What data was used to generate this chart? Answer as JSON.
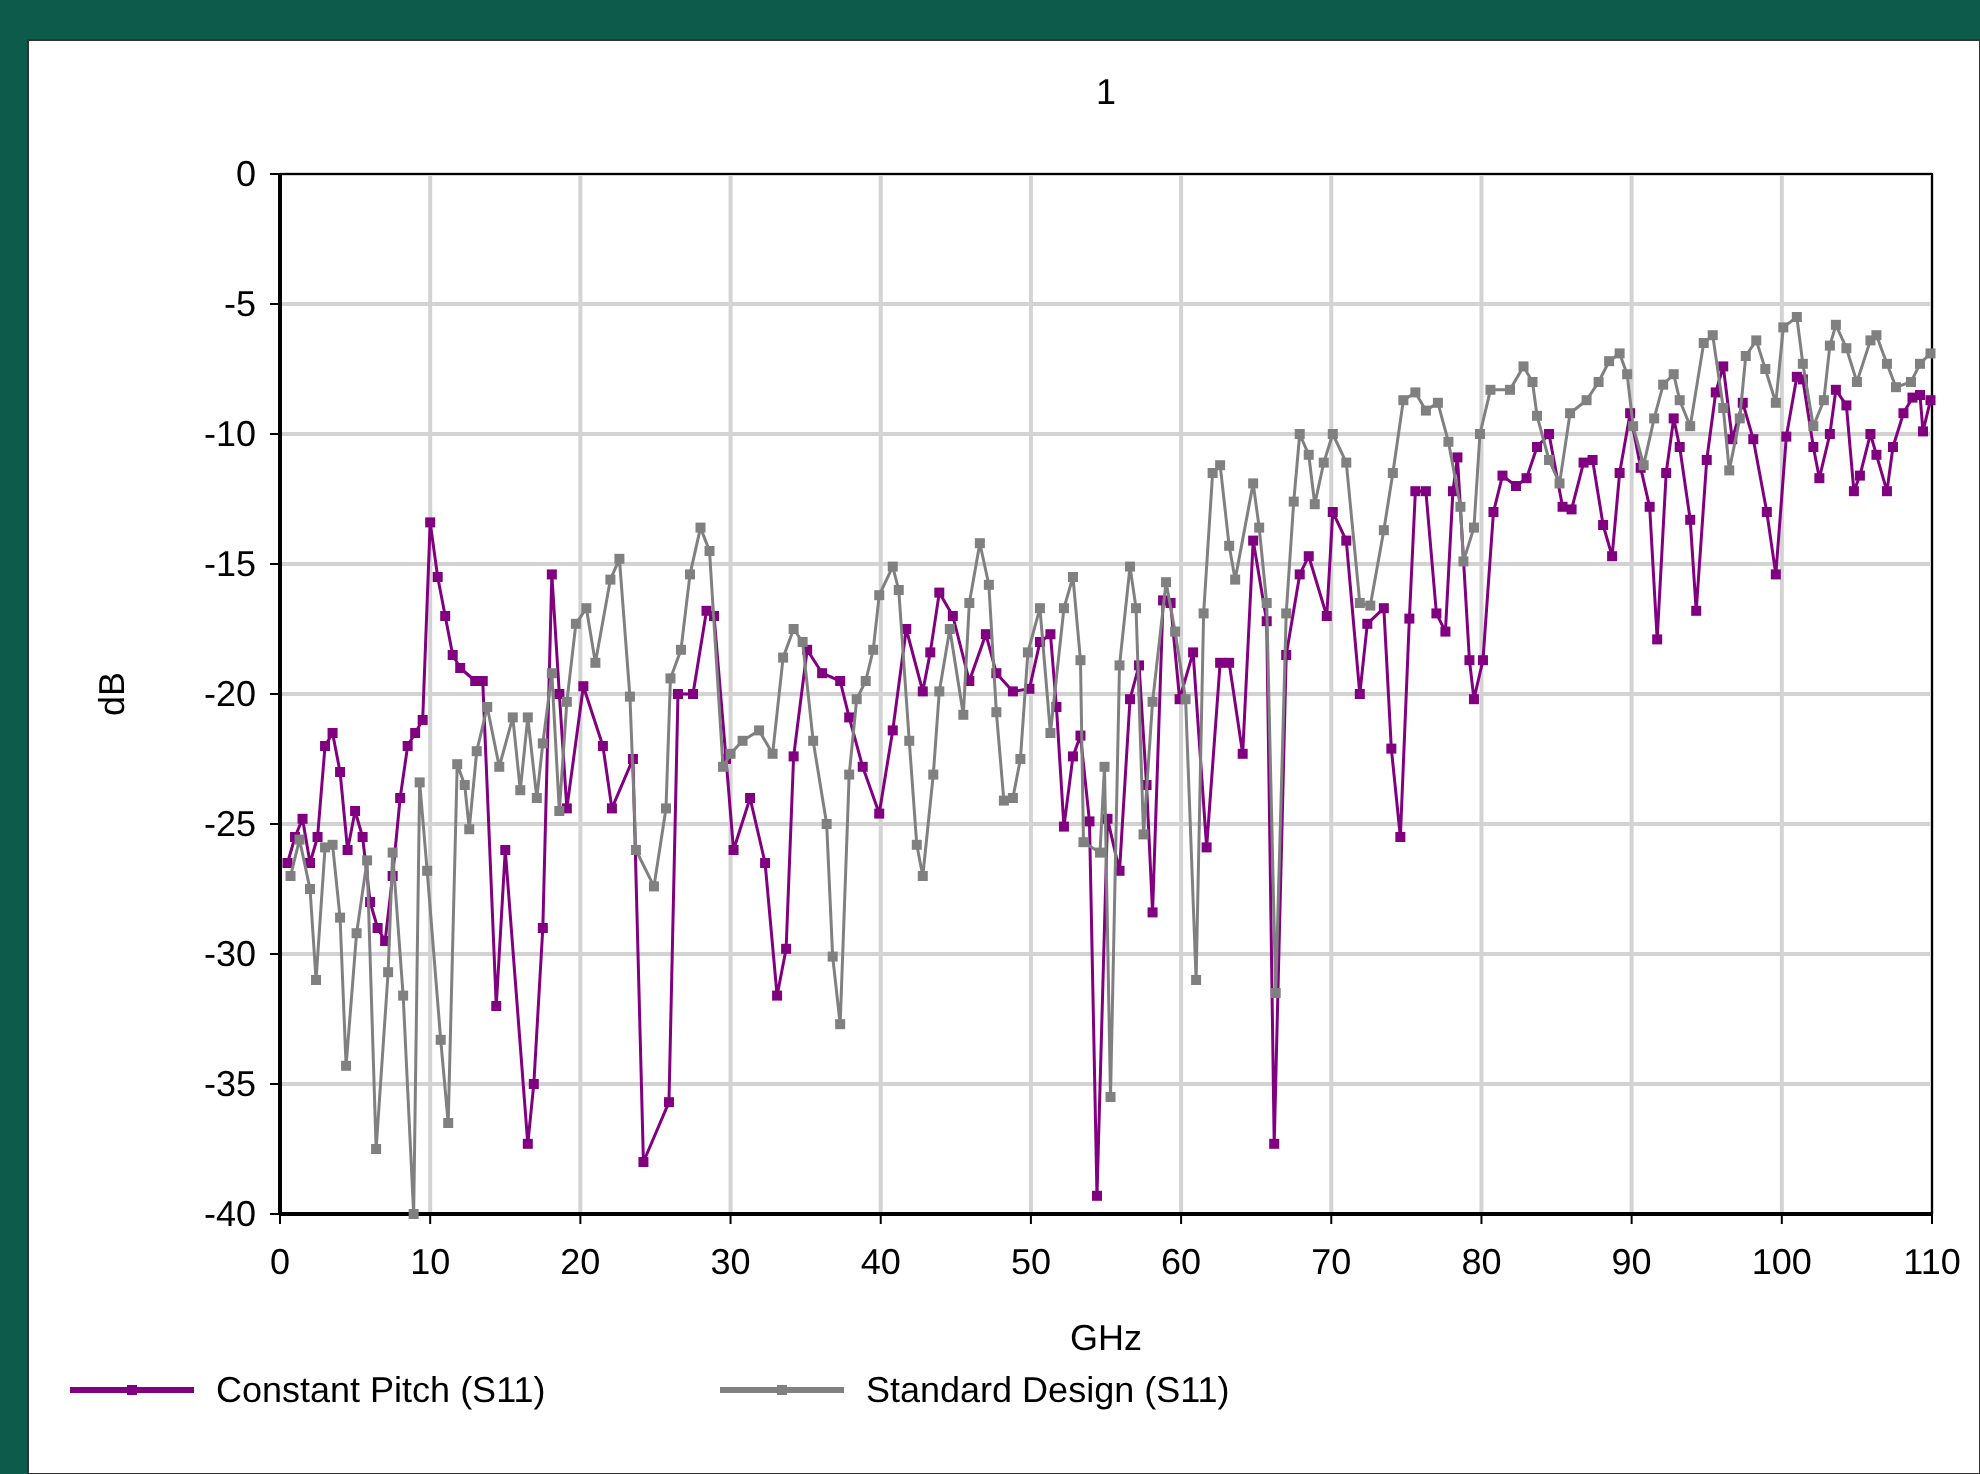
{
  "chart_data": {
    "type": "line",
    "title": "1",
    "xlabel": "GHz",
    "ylabel": "dB",
    "xlim": [
      0,
      110
    ],
    "xticks": [
      0,
      10,
      20,
      30,
      40,
      50,
      60,
      70,
      80,
      90,
      100,
      110
    ],
    "ylim": [
      -40,
      0
    ],
    "yticks": [
      -40,
      -35,
      -30,
      -25,
      -20,
      -15,
      -10,
      -5,
      0
    ],
    "grid": true,
    "legend": "bottom",
    "marker": "square",
    "line_style": "solid",
    "series": [
      {
        "name": "Constant Pitch (S11)",
        "color": "#800080",
        "x": [
          0.5,
          1,
          1.5,
          2,
          2.5,
          3,
          3.5,
          4,
          4.5,
          5,
          5.5,
          6,
          6.5,
          7,
          7.5,
          8,
          8.5,
          9,
          9.5,
          10,
          10.5,
          11,
          11.5,
          12,
          13,
          13.5,
          14.4,
          15,
          16.5,
          16.9,
          17.5,
          18.1,
          18.6,
          19.1,
          20.2,
          21.5,
          22.1,
          23.5,
          24.2,
          25.9,
          26.5,
          27.5,
          28.4,
          28.9,
          29.7,
          30.2,
          31.3,
          32.3,
          33.1,
          33.7,
          34.2,
          35.1,
          36.1,
          37.3,
          37.9,
          38.8,
          39.9,
          40.8,
          41.7,
          42.8,
          43.3,
          43.9,
          44.8,
          45.9,
          47,
          47.7,
          48.8,
          49.9,
          50.6,
          51.3,
          51.7,
          52.2,
          52.8,
          53.3,
          53.9,
          54.4,
          55.1,
          55.9,
          56.6,
          57.2,
          57.7,
          58.1,
          58.8,
          59.3,
          59.9,
          60.8,
          61.7,
          62.6,
          63.2,
          64.1,
          64.8,
          65.7,
          66.2,
          67,
          67.9,
          68.5,
          69.7,
          70.1,
          71,
          71.9,
          72.4,
          73.5,
          74,
          74.6,
          75.2,
          75.6,
          76.3,
          77,
          77.6,
          78.1,
          78.4,
          79.2,
          79.5,
          80.1,
          80.8,
          81.4,
          82.3,
          83,
          83.7,
          84.5,
          85.4,
          86,
          86.8,
          87.4,
          88.1,
          88.7,
          89.2,
          89.9,
          90.6,
          91.2,
          91.7,
          92.3,
          92.8,
          93.2,
          93.9,
          94.3,
          95,
          95.6,
          96.1,
          96.7,
          97.4,
          98.1,
          99,
          99.6,
          100.3,
          101,
          101.4,
          102.1,
          102.5,
          103.2,
          103.6,
          104.3,
          104.8,
          105.2,
          105.9,
          106.3,
          107,
          107.4,
          108.1,
          108.7,
          109.2,
          109.4,
          109.9
        ],
        "values": [
          -26.5,
          -25.5,
          -24.8,
          -26.5,
          -25.5,
          -22,
          -21.5,
          -23,
          -26,
          -24.5,
          -25.5,
          -28,
          -29,
          -29.5,
          -27,
          -24,
          -22,
          -21.5,
          -21,
          -13.4,
          -15.5,
          -17,
          -18.5,
          -19,
          -19.5,
          -19.5,
          -32,
          -26,
          -37.3,
          -35,
          -29,
          -15.4,
          -20,
          -24.4,
          -19.7,
          -22,
          -24.4,
          -22.5,
          -38,
          -35.7,
          -20,
          -20,
          -16.8,
          -17,
          -22.5,
          -26,
          -24,
          -26.5,
          -31.6,
          -29.8,
          -22.4,
          -18.3,
          -19.2,
          -19.5,
          -20.9,
          -22.8,
          -24.6,
          -21.4,
          -17.5,
          -19.9,
          -18.4,
          -16.1,
          -17,
          -19.5,
          -17.7,
          -19.2,
          -19.9,
          -19.8,
          -18,
          -17.7,
          -20.5,
          -25.1,
          -22.4,
          -21.6,
          -24.9,
          -39.3,
          -24.8,
          -26.8,
          -20.2,
          -18.9,
          -23.5,
          -28.4,
          -16.4,
          -16.5,
          -20.2,
          -18.4,
          -25.9,
          -18.8,
          -18.8,
          -22.3,
          -14.1,
          -17.2,
          -37.3,
          -18.5,
          -15.4,
          -14.7,
          -17,
          -13,
          -14.1,
          -20,
          -17.3,
          -16.7,
          -22.1,
          -25.5,
          -17.1,
          -12.2,
          -12.2,
          -16.9,
          -17.6,
          -12.2,
          -10.9,
          -18.7,
          -20.2,
          -18.7,
          -13,
          -11.6,
          -12,
          -11.7,
          -10.5,
          -10,
          -12.8,
          -12.9,
          -11.1,
          -11,
          -13.5,
          -14.7,
          -11.5,
          -9.2,
          -11.3,
          -12.8,
          -17.9,
          -11.5,
          -9.4,
          -10.5,
          -13.3,
          -16.8,
          -11,
          -8.4,
          -7.4,
          -10.2,
          -8.8,
          -10.2,
          -13,
          -15.4,
          -10.1,
          -7.8,
          -7.9,
          -10.5,
          -11.7,
          -10,
          -8.3,
          -8.9,
          -12.2,
          -11.6,
          -10,
          -10.8,
          -12.2,
          -10.5,
          -9.2,
          -8.6,
          -8.5,
          -9.9,
          -8.7
        ]
      },
      {
        "name": "Standard Design (S11)",
        "color": "#808080",
        "x": [
          0.7,
          1.3,
          2,
          2.4,
          3,
          3.5,
          4,
          4.4,
          5.1,
          5.8,
          6.4,
          7.2,
          7.5,
          8.2,
          8.9,
          9.3,
          9.8,
          10.7,
          11.2,
          11.8,
          12.3,
          12.6,
          13.1,
          13.8,
          14.6,
          15.5,
          16,
          16.5,
          17.1,
          17.5,
          18.1,
          18.6,
          19.1,
          19.7,
          20.4,
          21,
          22,
          22.6,
          23.3,
          23.7,
          24.9,
          25.7,
          26,
          26.7,
          27.3,
          28,
          28.6,
          29.5,
          30,
          30.8,
          31.9,
          32.8,
          33.5,
          34.2,
          34.8,
          35.5,
          36.4,
          36.8,
          37.3,
          37.9,
          38.4,
          39,
          39.5,
          39.9,
          40.8,
          41.2,
          41.9,
          42.4,
          42.8,
          43.5,
          43.9,
          44.6,
          45.5,
          45.9,
          46.6,
          47.2,
          47.7,
          48.2,
          48.8,
          49.3,
          49.8,
          50.6,
          51.3,
          52.2,
          52.8,
          53.3,
          53.5,
          54.6,
          54.9,
          55.3,
          55.9,
          56.6,
          57,
          57.5,
          58.1,
          59,
          59.6,
          60.3,
          61,
          61.5,
          62.1,
          62.6,
          63.2,
          63.6,
          64.8,
          65.2,
          65.7,
          66.3,
          67,
          67.5,
          67.9,
          68.5,
          68.9,
          69.5,
          70.1,
          71,
          71.9,
          72.6,
          73.5,
          74.1,
          74.8,
          75.6,
          76.3,
          77.1,
          77.8,
          78.6,
          78.8,
          79.5,
          79.9,
          80.6,
          81.9,
          82.8,
          83.4,
          83.7,
          84.5,
          85.2,
          85.9,
          87,
          87.8,
          88.5,
          89.2,
          89.7,
          90.1,
          90.8,
          91.5,
          92.1,
          92.8,
          93.2,
          93.9,
          94.8,
          95.4,
          96.1,
          96.5,
          97.2,
          97.6,
          98.3,
          98.9,
          99.6,
          100.1,
          101,
          101.4,
          102.1,
          102.8,
          103.2,
          103.6,
          104.3,
          105,
          105.9,
          106.3,
          107,
          107.6,
          108.6,
          109.2,
          109.9
        ],
        "values": [
          -27,
          -25.6,
          -27.5,
          -31,
          -25.9,
          -25.8,
          -28.6,
          -34.3,
          -29.2,
          -26.4,
          -37.5,
          -30.7,
          -26.1,
          -31.6,
          -40,
          -23.4,
          -26.8,
          -33.3,
          -36.5,
          -22.7,
          -23.5,
          -25.2,
          -22.2,
          -20.5,
          -22.8,
          -20.9,
          -23.7,
          -20.9,
          -24,
          -21.9,
          -19.2,
          -24.5,
          -20.3,
          -17.3,
          -16.7,
          -18.8,
          -15.6,
          -14.8,
          -20.1,
          -26,
          -27.4,
          -24.4,
          -19.4,
          -18.3,
          -15.4,
          -13.6,
          -14.5,
          -22.8,
          -22.3,
          -21.8,
          -21.4,
          -22.3,
          -18.6,
          -17.5,
          -18,
          -21.8,
          -25,
          -30.1,
          -32.7,
          -23.1,
          -20.2,
          -19.5,
          -18.3,
          -16.2,
          -15.1,
          -16,
          -21.8,
          -25.8,
          -27,
          -23.1,
          -19.9,
          -17.5,
          -20.8,
          -16.5,
          -14.2,
          -15.8,
          -20.7,
          -24.1,
          -24,
          -22.5,
          -18.4,
          -16.7,
          -21.5,
          -16.7,
          -15.5,
          -18.7,
          -25.7,
          -26.1,
          -22.8,
          -35.5,
          -18.9,
          -15.1,
          -16.7,
          -25.4,
          -20.3,
          -15.7,
          -17.6,
          -20.2,
          -31,
          -16.9,
          -11.5,
          -11.2,
          -14.3,
          -15.6,
          -11.9,
          -13.6,
          -16.5,
          -31.5,
          -16.9,
          -12.6,
          -10,
          -10.8,
          -12.7,
          -11.1,
          -10,
          -11.1,
          -16.5,
          -16.6,
          -13.7,
          -11.5,
          -8.7,
          -8.4,
          -9.1,
          -8.8,
          -10.3,
          -12.8,
          -14.9,
          -13.6,
          -10,
          -8.3,
          -8.3,
          -7.4,
          -8,
          -9.3,
          -11,
          -11.9,
          -9.2,
          -8.7,
          -8,
          -7.2,
          -6.9,
          -7.7,
          -9.7,
          -11.2,
          -9.4,
          -8.1,
          -7.7,
          -8.7,
          -9.7,
          -6.5,
          -6.2,
          -9,
          -11.4,
          -9.4,
          -7,
          -6.4,
          -7.5,
          -8.8,
          -5.9,
          -5.5,
          -7.3,
          -9.7,
          -8.7,
          -6.6,
          -5.8,
          -6.7,
          -8,
          -6.4,
          -6.2,
          -7.3,
          -8.2,
          -8,
          -7.3,
          -6.9
        ]
      }
    ]
  }
}
